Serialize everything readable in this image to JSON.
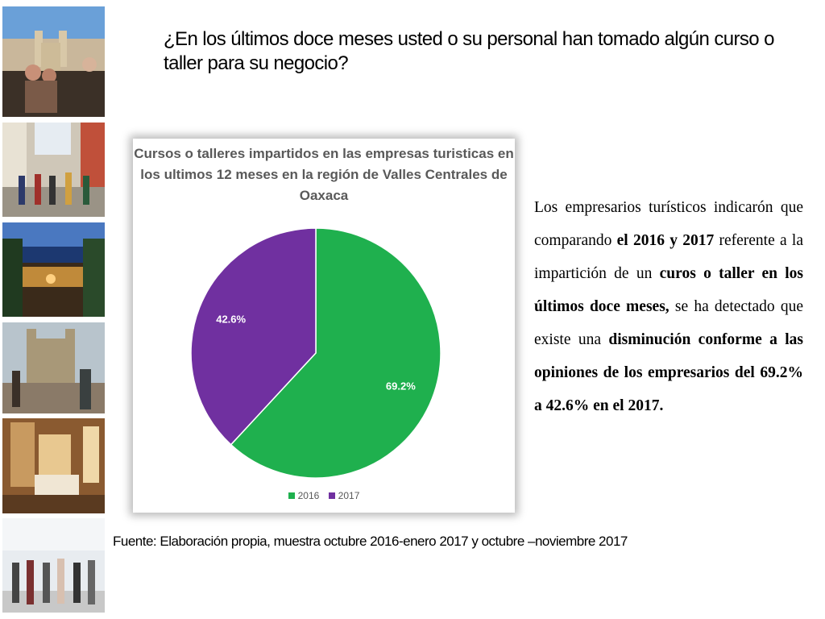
{
  "slide": {
    "title": "¿En los últimos doce meses usted o su personal han tomado algún curso o taller para su negocio?",
    "source": "Fuente: Elaboración propia, muestra octubre 2016-enero 2017 y octubre –noviembre 2017"
  },
  "body": {
    "t1": "Los empresarios turísticos indicarón que comparando ",
    "b1": "el 2016 y 2017",
    "t2": " referente a la impartición de un ",
    "b2": "curos o taller en los últimos doce meses,",
    "t3": " se ha detectado que existe una ",
    "b3": "disminución conforme a las opiniones de los empresarios del 69.2% a 42.6% en el 2017."
  },
  "colors": {
    "s2016": "#1fb04e",
    "s2017": "#7030a0"
  },
  "chart_data": {
    "type": "pie",
    "title": "Cursos o talleres impartidos en las empresas turisticas en los ultimos 12 meses en la región de Valles Centrales de Oaxaca",
    "series": [
      {
        "name": "2016",
        "value": 69.2,
        "label": "69.2%"
      },
      {
        "name": "2017",
        "value": 42.6,
        "label": "42.6%"
      }
    ],
    "legend": "bottom"
  },
  "photos": [
    {
      "icon": "cathedral-photo-icon"
    },
    {
      "icon": "street-crowd-photo-icon"
    },
    {
      "icon": "courtyard-night-photo-icon"
    },
    {
      "icon": "church-plaza-photo-icon"
    },
    {
      "icon": "hotel-room-photo-icon"
    },
    {
      "icon": "airport-crowd-photo-icon"
    }
  ]
}
